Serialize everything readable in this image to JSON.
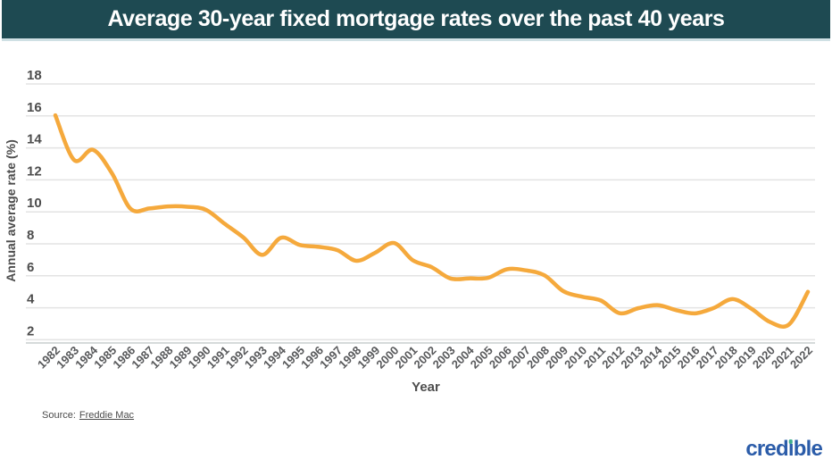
{
  "header": {
    "title": "Average 30-year fixed mortgage rates over the past 40 years"
  },
  "chart_data": {
    "type": "line",
    "title": "Average 30-year fixed mortgage rates over the past 40 years",
    "xlabel": "Year",
    "ylabel": "Annual average rate (%)",
    "x": [
      1982,
      1983,
      1984,
      1985,
      1986,
      1987,
      1988,
      1989,
      1990,
      1991,
      1992,
      1993,
      1994,
      1995,
      1996,
      1997,
      1998,
      1999,
      2000,
      2001,
      2002,
      2003,
      2004,
      2005,
      2006,
      2007,
      2008,
      2009,
      2010,
      2011,
      2012,
      2013,
      2014,
      2015,
      2016,
      2017,
      2018,
      2019,
      2020,
      2021,
      2022
    ],
    "series": [
      {
        "name": "30-year fixed mortgage rate",
        "values": [
          16.04,
          13.24,
          13.88,
          12.43,
          10.19,
          10.21,
          10.34,
          10.32,
          10.13,
          9.25,
          8.39,
          7.31,
          8.38,
          7.93,
          7.81,
          7.6,
          6.94,
          7.44,
          8.05,
          6.97,
          6.54,
          5.83,
          5.84,
          5.87,
          6.41,
          6.34,
          6.03,
          5.04,
          4.69,
          4.45,
          3.66,
          3.98,
          4.17,
          3.85,
          3.65,
          3.99,
          4.54,
          3.94,
          3.1,
          2.96,
          5.0
        ]
      }
    ],
    "ylim": [
      2,
      18
    ],
    "yticks": [
      2,
      4,
      6,
      8,
      10,
      12,
      14,
      16,
      18
    ],
    "grid": true,
    "legend": false,
    "line_color": "#F5A93C"
  },
  "footer": {
    "source_label": "Source:",
    "source_link_text": "Freddie Mac",
    "logo": {
      "text": "credible",
      "prefix": "cred",
      "dotless_i": "ı",
      "suffix": "ble",
      "blue": "#2B5CA9",
      "green": "#3FAE8C"
    }
  },
  "colors": {
    "header_bg": "#1E4A52",
    "header_border": "#CFE0E4",
    "header_text": "#FFFFFF",
    "line": "#F5A93C",
    "grid": "#E3E3E3",
    "axis_line": "#C9CDCE",
    "x_tick_text": "#58595B",
    "y_tick_text": "#4D4D4D"
  }
}
